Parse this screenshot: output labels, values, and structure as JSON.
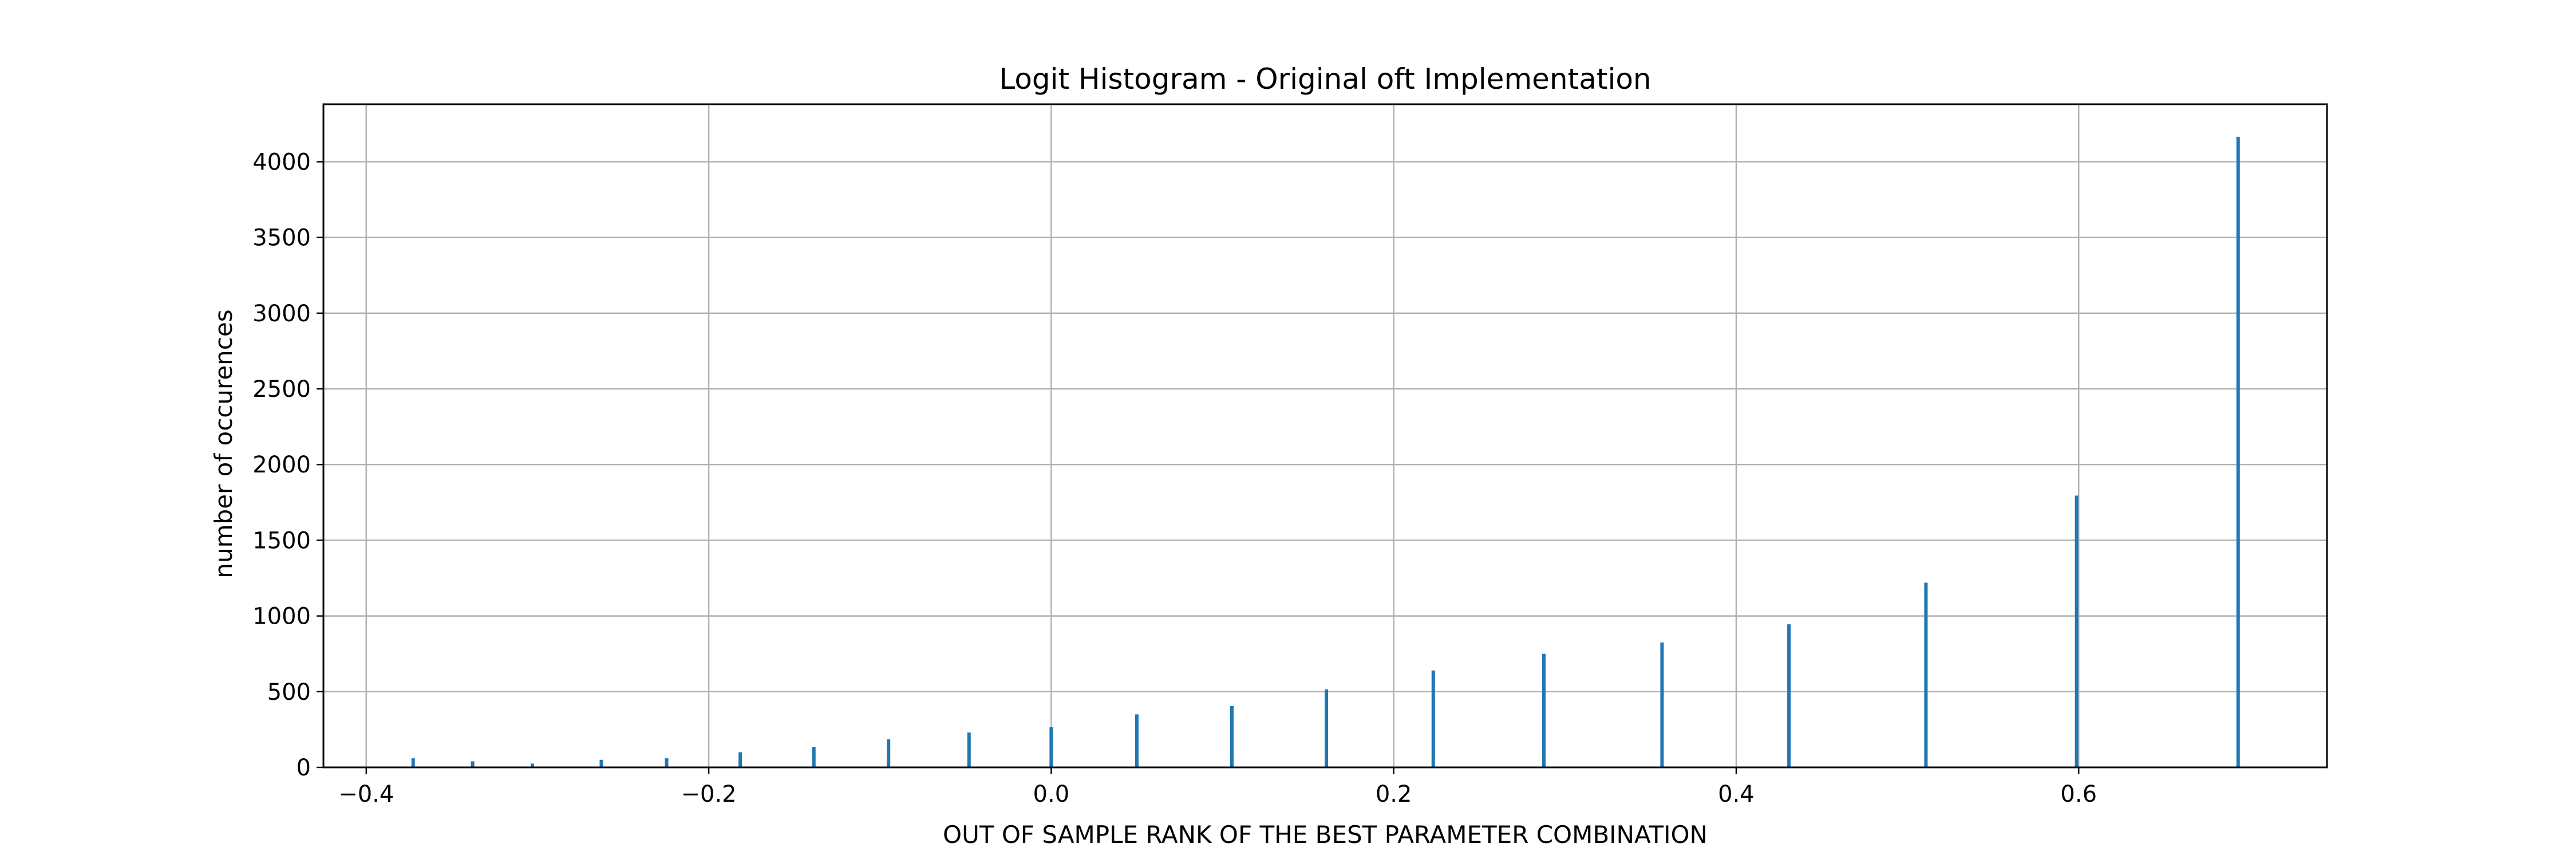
{
  "chart_data": {
    "type": "bar",
    "title": "Logit Histogram - Original oft Implementation",
    "xlabel": "OUT OF SAMPLE RANK OF THE BEST PARAMETER COMBINATION",
    "ylabel": "number of occurences",
    "xlim": [
      -0.425,
      0.745
    ],
    "ylim": [
      0,
      4380
    ],
    "xticks": [
      -0.4,
      -0.2,
      0.0,
      0.2,
      0.4,
      0.6
    ],
    "xtick_labels": [
      "−0.4",
      "−0.2",
      "0.0",
      "0.2",
      "0.4",
      "0.6"
    ],
    "yticks": [
      0,
      500,
      1000,
      1500,
      2000,
      2500,
      3000,
      3500,
      4000
    ],
    "ytick_labels": [
      "0",
      "500",
      "1000",
      "1500",
      "2000",
      "2500",
      "3000",
      "3500",
      "4000"
    ],
    "grid": true,
    "bar_color": "#1f77b4",
    "bins": [
      {
        "x": -0.3726,
        "count": 60
      },
      {
        "x": -0.3379,
        "count": 40
      },
      {
        "x": -0.303,
        "count": 25
      },
      {
        "x": -0.2627,
        "count": 50
      },
      {
        "x": -0.2246,
        "count": 60
      },
      {
        "x": -0.1816,
        "count": 100
      },
      {
        "x": -0.1386,
        "count": 135
      },
      {
        "x": -0.095,
        "count": 185
      },
      {
        "x": -0.048,
        "count": 230
      },
      {
        "x": 0.0,
        "count": 265
      },
      {
        "x": 0.05,
        "count": 350
      },
      {
        "x": 0.1055,
        "count": 405
      },
      {
        "x": 0.1607,
        "count": 515
      },
      {
        "x": 0.2231,
        "count": 640
      },
      {
        "x": 0.2877,
        "count": 750
      },
      {
        "x": 0.3567,
        "count": 825
      },
      {
        "x": 0.4308,
        "count": 945
      },
      {
        "x": 0.5108,
        "count": 1220
      },
      {
        "x": 0.5988,
        "count": 1795
      },
      {
        "x": 0.6931,
        "count": 4165
      }
    ]
  }
}
